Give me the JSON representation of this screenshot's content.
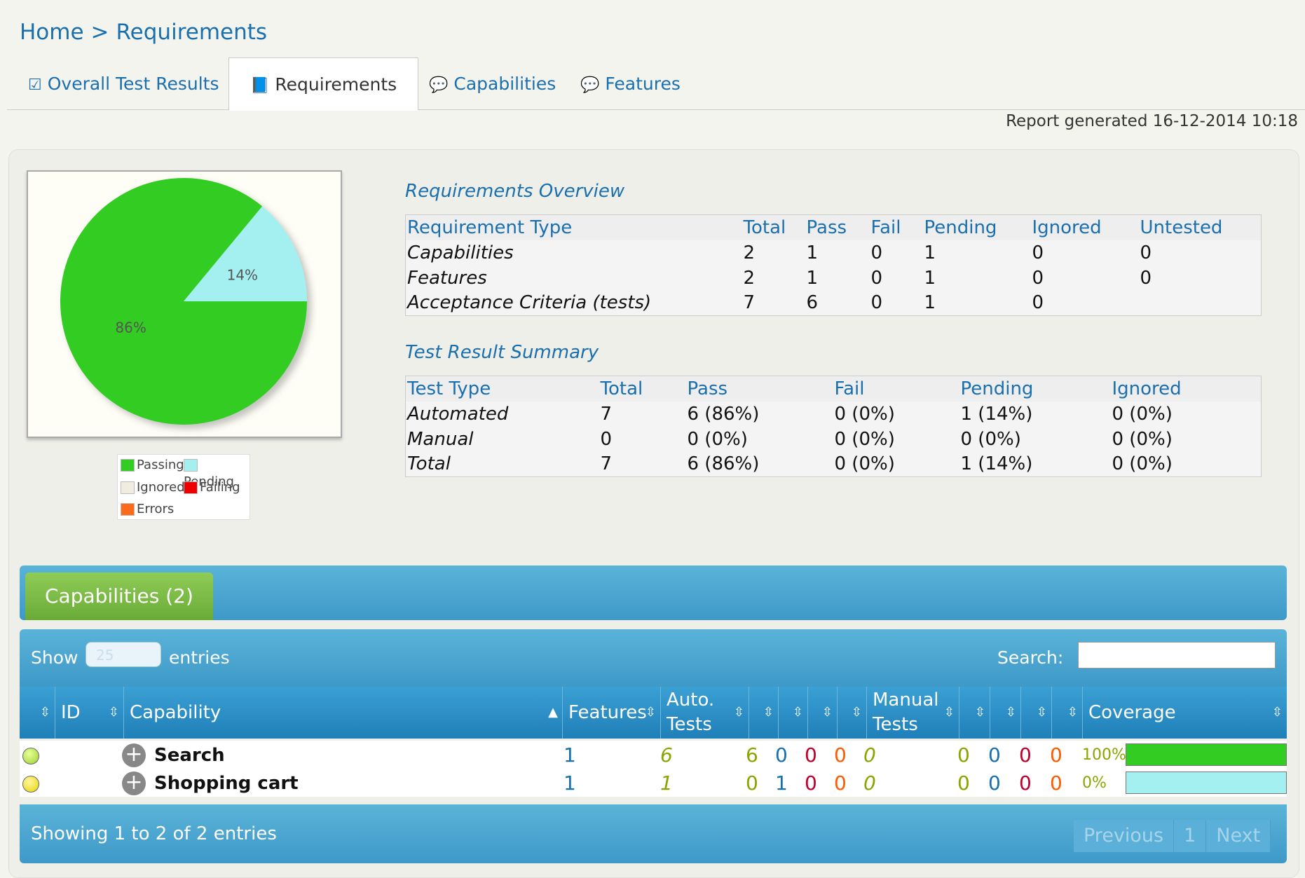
{
  "breadcrumb": {
    "home": "Home",
    "sep": ">",
    "current": "Requirements"
  },
  "tabs": [
    {
      "label": "Overall Test Results",
      "icon": "checkbox-icon"
    },
    {
      "label": "Requirements",
      "icon": "book-icon"
    },
    {
      "label": "Capabilities",
      "icon": "chat-icon"
    },
    {
      "label": "Features",
      "icon": "chat-icon"
    }
  ],
  "report_generated": "Report generated 16-12-2014 10:18",
  "chart_data": {
    "type": "pie",
    "slices": [
      {
        "name": "Passing",
        "value": 86,
        "label": "86%",
        "color": "#33cc22"
      },
      {
        "name": "Pending",
        "value": 14,
        "label": "14%",
        "color": "#a4f0f0"
      }
    ],
    "legend": [
      "Passing",
      "Pending",
      "Ignored",
      "Failing",
      "Errors"
    ],
    "legend_colors": [
      "#33cc22",
      "#a4f0f0",
      "#f0ede0",
      "#ee0000",
      "#ff6a1a"
    ]
  },
  "overview": {
    "title": "Requirements Overview",
    "headers": [
      "Requirement Type",
      "Total",
      "Pass",
      "Fail",
      "Pending",
      "Ignored",
      "Untested"
    ],
    "rows": [
      [
        "Capabilities",
        "2",
        "1",
        "0",
        "1",
        "0",
        "0"
      ],
      [
        "Features",
        "2",
        "1",
        "0",
        "1",
        "0",
        "0"
      ],
      [
        "Acceptance Criteria (tests)",
        "7",
        "6",
        "0",
        "1",
        "0",
        ""
      ]
    ]
  },
  "summary": {
    "title": "Test Result Summary",
    "headers": [
      "Test Type",
      "Total",
      "Pass",
      "Fail",
      "Pending",
      "Ignored"
    ],
    "rows": [
      [
        "Automated",
        "7",
        "6 (86%)",
        "0 (0%)",
        "1 (14%)",
        "0 (0%)"
      ],
      [
        "Manual",
        "0",
        "0 (0%)",
        "0 (0%)",
        "0 (0%)",
        "0 (0%)"
      ],
      [
        "Total",
        "7",
        "6 (86%)",
        "0 (0%)",
        "1 (14%)",
        "0 (0%)"
      ]
    ]
  },
  "capabilities": {
    "tab_label": "Capabilities (2)",
    "show": "Show",
    "entries_value": "25",
    "entries": "entries",
    "search_label": "Search:",
    "search_value": "",
    "headers": {
      "id": "ID",
      "capability": "Capability",
      "features": "Features",
      "auto_1": "Auto.",
      "auto_2": "Tests",
      "manual_1": "Manual",
      "manual_2": "Tests",
      "coverage": "Coverage"
    },
    "rows": [
      {
        "name": "Search",
        "features": "1",
        "auto_tests": "6",
        "auto_pass": "6",
        "auto_pending": "0",
        "auto_fail": "0",
        "auto_error": "0",
        "manual_tests": "0",
        "manual_pass": "0",
        "manual_pending": "0",
        "manual_fail": "0",
        "manual_error": "0",
        "coverage": "100%",
        "coverage_value": 100,
        "status_color": "#9ad12a",
        "bar_color": "#33cc22"
      },
      {
        "name": "Shopping cart",
        "features": "1",
        "auto_tests": "1",
        "auto_pass": "0",
        "auto_pending": "1",
        "auto_fail": "0",
        "auto_error": "0",
        "manual_tests": "0",
        "manual_pass": "0",
        "manual_pending": "0",
        "manual_fail": "0",
        "manual_error": "0",
        "coverage": "0%",
        "coverage_value": 0,
        "status_color": "#e8d400",
        "bar_color": "#a4f0f0"
      }
    ],
    "info": "Showing 1 to 2 of 2 entries",
    "pager": {
      "prev": "Previous",
      "page": "1",
      "next": "Next"
    }
  }
}
